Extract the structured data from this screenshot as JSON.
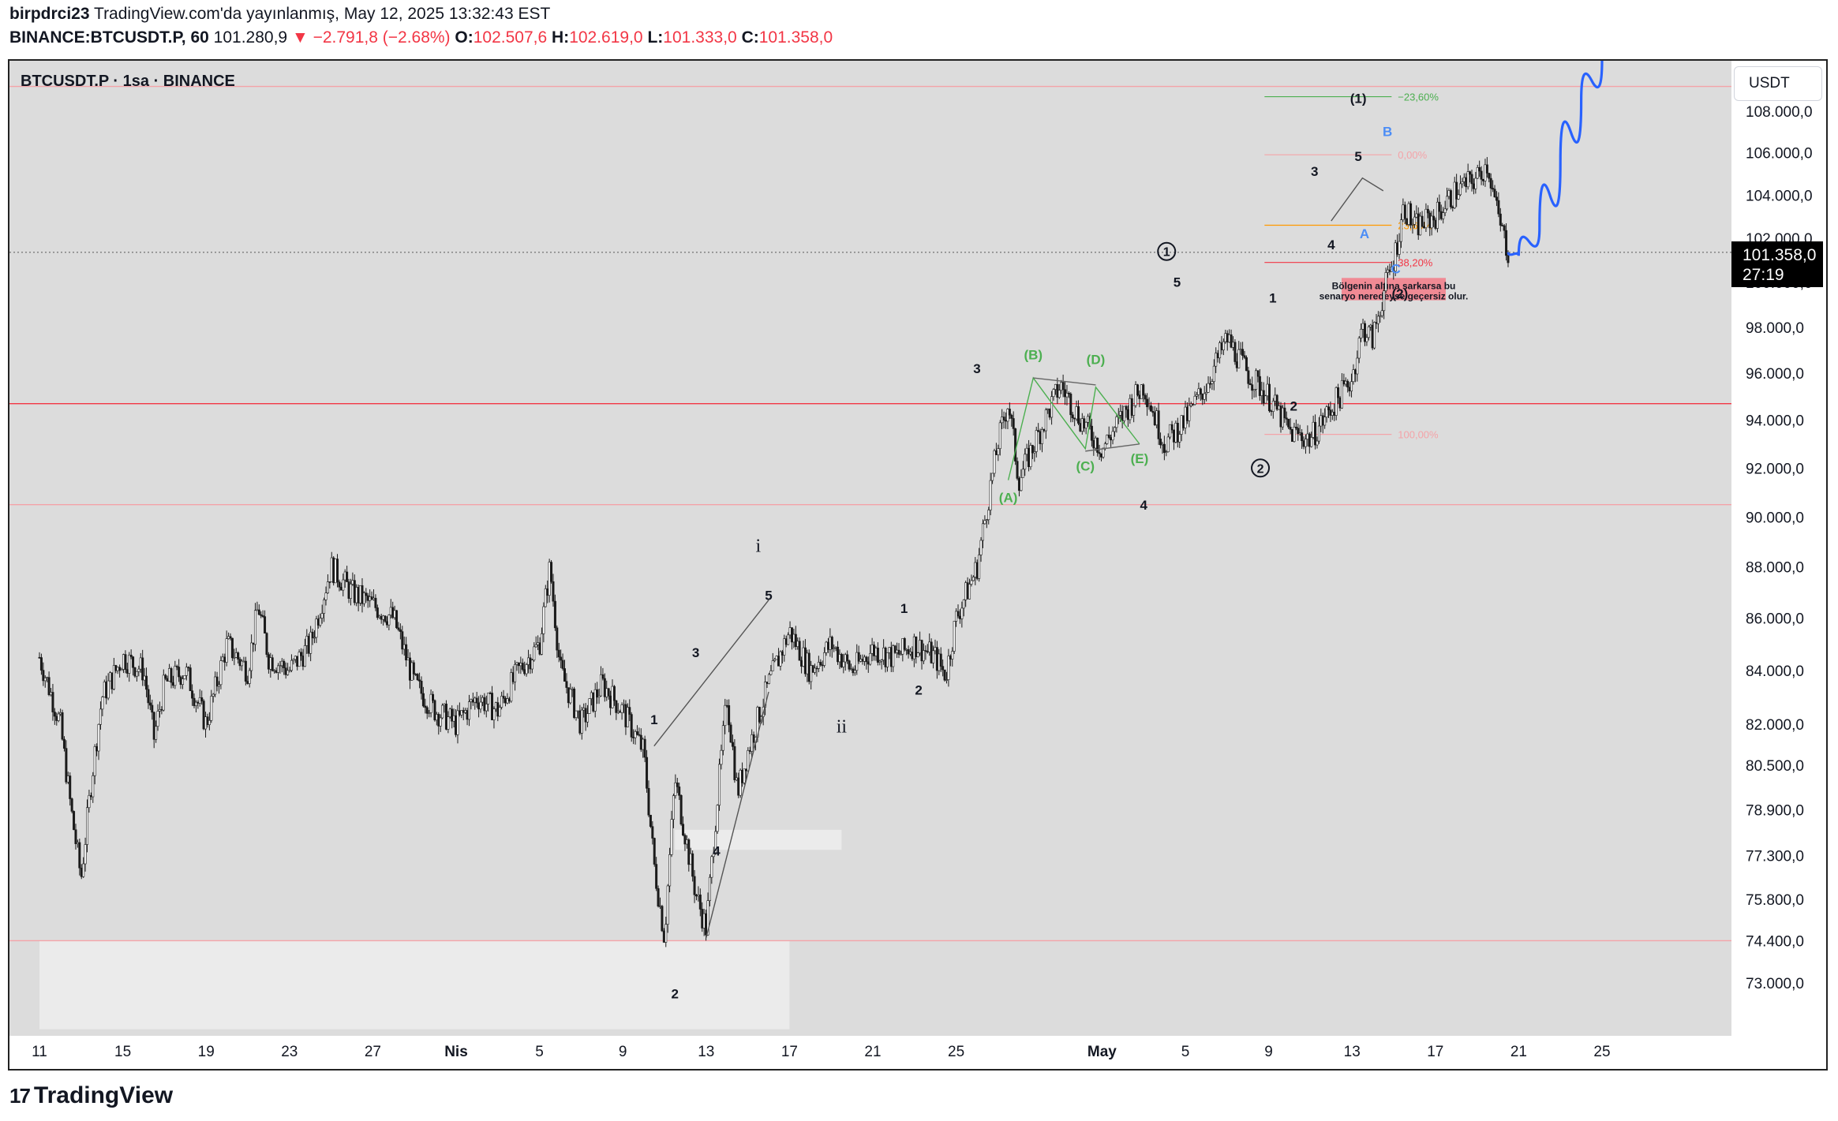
{
  "header": {
    "author": "birpdrci23",
    "published": "TradingView.com'da yayınlanmış, May 12, 2025 13:32:43 EST",
    "symbol": "BINANCE:BTCUSDT.P, 60",
    "last": "101.280,9",
    "change": "−2.791,8 (−2.68%)",
    "o_label": "O:",
    "o_value": "102.507,6",
    "h_label": "H:",
    "h_value": "102.619,0",
    "l_label": "L:",
    "l_value": "101.333,0",
    "c_label": "C:",
    "c_value": "101.358,0"
  },
  "chart_title": "BTCUSDT.P · 1sa · BINANCE",
  "currency_button": "USDT",
  "price_tag": {
    "price": "101.358,0",
    "countdown": "27:19"
  },
  "footer": {
    "logo_mark": "17",
    "brand": "TradingView"
  },
  "colors": {
    "background": "#dcdcdc",
    "candle": "#1a1a1a",
    "green_label": "#4caf50",
    "blue_projection": "#2962ff",
    "red_line": "#f23645",
    "orange_fib": "#ff9800"
  },
  "chart_data": {
    "type": "candlestick",
    "ylim": [
      72000,
      110000
    ],
    "y_ticks": [
      "108.000,0",
      "106.000,0",
      "104.000,0",
      "102.000,0",
      "100.000,0",
      "98.000,0",
      "96.000,0",
      "94.000,0",
      "92.000,0",
      "90.000,0",
      "88.000,0",
      "86.000,0",
      "84.000,0",
      "82.000,0",
      "80.500,0",
      "78.900,0",
      "77.300,0",
      "75.800,0",
      "74.400,0",
      "73.000,0"
    ],
    "y_tick_values": [
      108000,
      106000,
      104000,
      102000,
      100000,
      98000,
      96000,
      94000,
      92000,
      90000,
      88000,
      86000,
      84000,
      82000,
      80500,
      78900,
      77300,
      75800,
      74400,
      73000
    ],
    "x_ticks": [
      "11",
      "15",
      "19",
      "23",
      "27",
      "Nis",
      "5",
      "9",
      "13",
      "17",
      "21",
      "25",
      "May",
      "5",
      "9",
      "13",
      "17",
      "21",
      "25"
    ],
    "x_tick_days": [
      0,
      4,
      8,
      12,
      16,
      20,
      24,
      28,
      32,
      36,
      40,
      44,
      51,
      55,
      59,
      63,
      67,
      71,
      75
    ],
    "bold_x_ticks": [
      "Nis",
      "May"
    ],
    "price_path": [
      [
        0,
        84500
      ],
      [
        1,
        82000
      ],
      [
        1.5,
        79000
      ],
      [
        2,
        76500
      ],
      [
        2.5,
        80000
      ],
      [
        3,
        83000
      ],
      [
        4,
        84500
      ],
      [
        5,
        84000
      ],
      [
        5.5,
        81500
      ],
      [
        6,
        83500
      ],
      [
        7,
        84000
      ],
      [
        8,
        82000
      ],
      [
        9,
        85000
      ],
      [
        10,
        84000
      ],
      [
        10.5,
        86500
      ],
      [
        11,
        84500
      ],
      [
        12,
        84000
      ],
      [
        13,
        85000
      ],
      [
        14,
        88000
      ],
      [
        15,
        87000
      ],
      [
        16,
        86500
      ],
      [
        17,
        86000
      ],
      [
        18,
        83500
      ],
      [
        19,
        82500
      ],
      [
        20,
        82000
      ],
      [
        21,
        83000
      ],
      [
        22,
        82500
      ],
      [
        23,
        84000
      ],
      [
        24,
        85000
      ],
      [
        24.5,
        88000
      ],
      [
        25,
        84000
      ],
      [
        26,
        82000
      ],
      [
        27,
        83500
      ],
      [
        28,
        82500
      ],
      [
        29,
        81000
      ],
      [
        29.5,
        77000
      ],
      [
        30,
        74500
      ],
      [
        30.5,
        80000
      ],
      [
        31,
        78000
      ],
      [
        31.5,
        76000
      ],
      [
        32,
        74800
      ],
      [
        32.5,
        79000
      ],
      [
        33,
        83000
      ],
      [
        33.5,
        79500
      ],
      [
        34,
        81000
      ],
      [
        35,
        83500
      ],
      [
        36,
        85500
      ],
      [
        37,
        84000
      ],
      [
        38,
        85000
      ],
      [
        39,
        84000
      ],
      [
        40,
        84800
      ],
      [
        41,
        84500
      ],
      [
        42,
        85000
      ],
      [
        43,
        84500
      ],
      [
        43.5,
        83800
      ],
      [
        44,
        86000
      ],
      [
        45,
        88000
      ],
      [
        45.5,
        90500
      ],
      [
        46,
        93000
      ],
      [
        46.5,
        94800
      ],
      [
        47,
        91500
      ],
      [
        48,
        93500
      ],
      [
        49,
        95500
      ],
      [
        50,
        94000
      ],
      [
        51,
        92800
      ],
      [
        52,
        94200
      ],
      [
        53,
        95500
      ],
      [
        54,
        93000
      ],
      [
        55,
        94000
      ],
      [
        56,
        95500
      ],
      [
        57,
        97500
      ],
      [
        58,
        96000
      ],
      [
        59,
        95000
      ],
      [
        60,
        93500
      ],
      [
        61,
        93200
      ],
      [
        62,
        94500
      ],
      [
        63,
        95800
      ],
      [
        63.5,
        98000
      ],
      [
        64,
        97500
      ],
      [
        64.5,
        99500
      ],
      [
        65,
        101000
      ],
      [
        65.5,
        103500
      ],
      [
        66,
        102500
      ],
      [
        67,
        103000
      ],
      [
        68,
        104200
      ],
      [
        69,
        104800
      ],
      [
        69.5,
        105500
      ],
      [
        70,
        103000
      ],
      [
        70.5,
        101358
      ]
    ],
    "projection_path": [
      [
        70.5,
        101358
      ],
      [
        71,
        101200
      ],
      [
        72,
        102500
      ],
      [
        73,
        105500
      ],
      [
        74,
        108500
      ],
      [
        75,
        110500
      ]
    ],
    "horizontal_lines": [
      {
        "price": 109200,
        "color": "#f4a3a8"
      },
      {
        "price": 94700,
        "color": "#f23645"
      },
      {
        "price": 90500,
        "color": "#f4a3a8"
      },
      {
        "price": 74400,
        "color": "#f4a3a8"
      }
    ],
    "current_price_line": 101358,
    "fib_levels": [
      {
        "label": "−23,60%",
        "price": 108700,
        "color": "#4caf50"
      },
      {
        "label": "0,00%",
        "price": 105900,
        "color": "#f4a3a8"
      },
      {
        "label": "23,60%",
        "price": 102600,
        "color": "#ff9800"
      },
      {
        "label": "38,20%",
        "price": 100900,
        "color": "#f23645"
      },
      {
        "label": "100,00%",
        "price": 93400,
        "color": "#f4a3a8"
      }
    ],
    "zones": [
      {
        "name": "invalidation-zone",
        "from_day": 62.5,
        "to_day": 67.5,
        "low": 99200,
        "high": 100200,
        "color": "#f08a94",
        "text": "Bölgenin altına sarkarsa bu senaryo neredeyse geçersiz olur."
      },
      {
        "name": "support-zone-low",
        "from_day": 0,
        "to_day": 36,
        "low": 71500,
        "high": 74400,
        "color": "#ebebeb",
        "text": ""
      },
      {
        "name": "support-zone-mid",
        "from_day": 30.5,
        "to_day": 38.5,
        "low": 77500,
        "high": 78200,
        "color": "#ebebeb",
        "text": ""
      }
    ],
    "wave_labels": [
      {
        "t": "i",
        "d": 34.5,
        "p": 88600,
        "c": "#131722",
        "style": "roman"
      },
      {
        "t": "ii",
        "d": 38.5,
        "p": 81700,
        "c": "#131722",
        "style": "roman"
      },
      {
        "t": "1",
        "d": 29.5,
        "p": 82000,
        "c": "#131722"
      },
      {
        "t": "2",
        "d": 30.5,
        "p": 72500,
        "c": "#131722"
      },
      {
        "t": "3",
        "d": 31.5,
        "p": 84500,
        "c": "#131722"
      },
      {
        "t": "4",
        "d": 32.5,
        "p": 77300,
        "c": "#131722"
      },
      {
        "t": "5",
        "d": 35,
        "p": 86700,
        "c": "#131722"
      },
      {
        "t": "1",
        "d": 41.5,
        "p": 86200,
        "c": "#131722"
      },
      {
        "t": "2",
        "d": 42.2,
        "p": 83100,
        "c": "#131722"
      },
      {
        "t": "3",
        "d": 45,
        "p": 96000,
        "c": "#131722"
      },
      {
        "t": "4",
        "d": 53,
        "p": 90300,
        "c": "#131722"
      },
      {
        "t": "5",
        "d": 54.6,
        "p": 99800,
        "c": "#131722"
      },
      {
        "t": "(A)",
        "d": 46.5,
        "p": 90600,
        "c": "#4caf50"
      },
      {
        "t": "(B)",
        "d": 47.7,
        "p": 96600,
        "c": "#4caf50"
      },
      {
        "t": "(C)",
        "d": 50.2,
        "p": 91900,
        "c": "#4caf50"
      },
      {
        "t": "(D)",
        "d": 50.7,
        "p": 96400,
        "c": "#4caf50"
      },
      {
        "t": "(E)",
        "d": 52.8,
        "p": 92200,
        "c": "#4caf50"
      },
      {
        "t": "1",
        "d": 59.2,
        "p": 99100,
        "c": "#131722"
      },
      {
        "t": "2",
        "d": 60.2,
        "p": 94400,
        "c": "#131722"
      },
      {
        "t": "3",
        "d": 61.2,
        "p": 104900,
        "c": "#131722"
      },
      {
        "t": "4",
        "d": 62,
        "p": 101500,
        "c": "#131722"
      },
      {
        "t": "5",
        "d": 63.3,
        "p": 105600,
        "c": "#131722"
      },
      {
        "t": "(1)",
        "d": 63.3,
        "p": 108400,
        "c": "#131722"
      },
      {
        "t": "(2)",
        "d": 65.3,
        "p": 99300,
        "c": "#131722"
      },
      {
        "t": "A",
        "d": 63.6,
        "p": 102000,
        "c": "#4c8df6"
      },
      {
        "t": "B",
        "d": 64.7,
        "p": 106800,
        "c": "#4c8df6"
      },
      {
        "t": "C",
        "d": 65.1,
        "p": 100400,
        "c": "#4c8df6"
      }
    ],
    "circle_labels": [
      {
        "t": "1",
        "d": 54.1,
        "p": 101400
      },
      {
        "t": "2",
        "d": 58.6,
        "p": 92000
      }
    ],
    "structure_lines": [
      {
        "points": [
          [
            29.5,
            81200
          ],
          [
            35,
            86700
          ]
        ],
        "color": "#555"
      },
      {
        "points": [
          [
            32,
            74500
          ],
          [
            35,
            83200
          ]
        ],
        "color": "#555"
      },
      {
        "points": [
          [
            46.5,
            91500
          ],
          [
            47.7,
            95800
          ],
          [
            50.2,
            92800
          ],
          [
            50.7,
            95400
          ],
          [
            52.8,
            93000
          ]
        ],
        "color": "#4caf50"
      },
      {
        "points": [
          [
            47.7,
            95800
          ],
          [
            50.7,
            95500
          ]
        ],
        "color": "#666"
      },
      {
        "points": [
          [
            50.2,
            92700
          ],
          [
            52.8,
            93000
          ]
        ],
        "color": "#666"
      },
      {
        "points": [
          [
            62,
            102800
          ],
          [
            63.5,
            104800
          ],
          [
            64.5,
            104200
          ]
        ],
        "color": "#555"
      }
    ]
  }
}
